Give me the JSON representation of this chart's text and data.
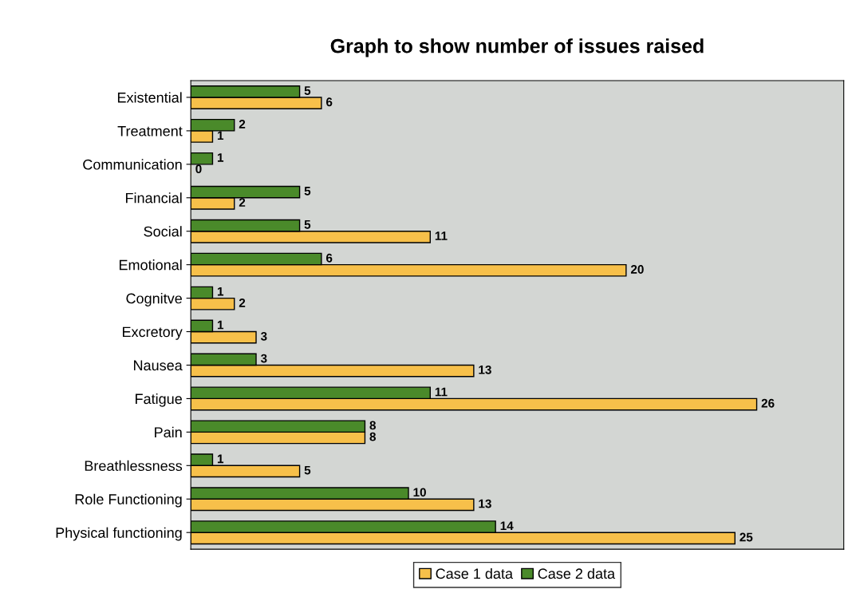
{
  "chart_data": {
    "type": "bar",
    "orientation": "horizontal",
    "title": "Graph to show number of issues raised",
    "categories": [
      "Existential",
      "Treatment",
      "Communication",
      "Financial",
      "Social",
      "Emotional",
      "Cognitve",
      "Excretory",
      "Nausea",
      "Fatigue",
      "Pain",
      "Breathlessness",
      "Role Functioning",
      "Physical functioning"
    ],
    "series": [
      {
        "name": "Case 1 data",
        "color": "#f7c04a",
        "values": [
          6,
          1,
          0,
          2,
          11,
          20,
          2,
          3,
          13,
          26,
          8,
          5,
          13,
          25
        ]
      },
      {
        "name": "Case 2 data",
        "color": "#4a8a2a",
        "values": [
          5,
          2,
          1,
          5,
          5,
          6,
          1,
          1,
          3,
          11,
          8,
          1,
          10,
          14
        ]
      }
    ],
    "xlim": [
      0,
      30
    ],
    "tick_labels": "y",
    "data_labels": true,
    "grid": false,
    "legend": "bottom"
  }
}
